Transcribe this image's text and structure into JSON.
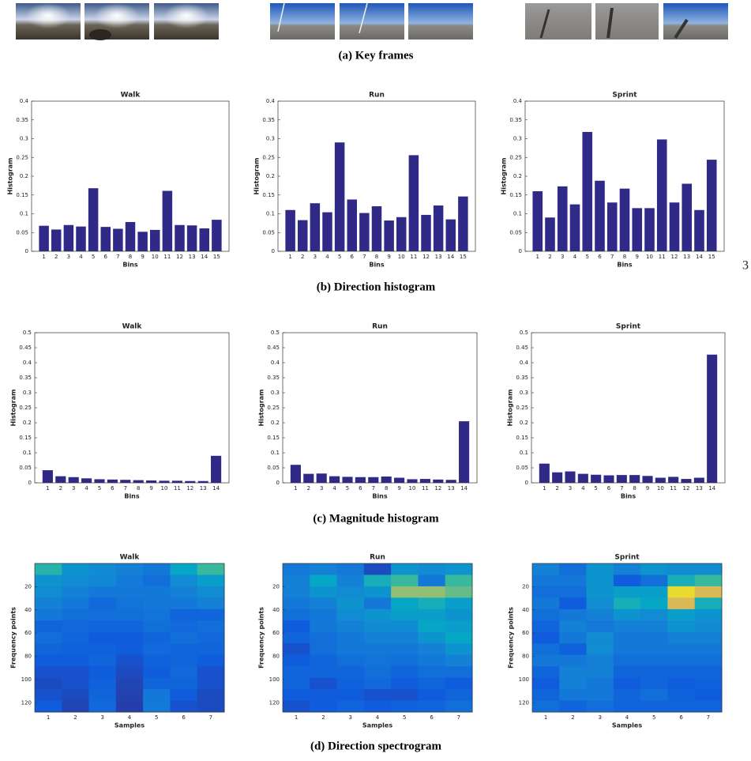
{
  "captions": [
    "(a) Key frames",
    "(b) Direction histogram",
    "(c) Magnitude histogram",
    "(d) Direction spectrogram"
  ],
  "page_number": "3",
  "chart_data": [
    {
      "type": "bar",
      "title": "Walk",
      "x_label": "Bins",
      "y_label": "Histogram",
      "color": "#2f2a87",
      "categories": [
        "1",
        "2",
        "3",
        "4",
        "5",
        "6",
        "7",
        "8",
        "9",
        "10",
        "11",
        "12",
        "13",
        "14",
        "15"
      ],
      "values": [
        0.068,
        0.058,
        0.07,
        0.066,
        0.168,
        0.065,
        0.06,
        0.078,
        0.052,
        0.057,
        0.161,
        0.07,
        0.069,
        0.061,
        0.084
      ],
      "ylim": [
        0,
        0.4
      ],
      "yticks": [
        0,
        0.05,
        0.1,
        0.15,
        0.2,
        0.25,
        0.3,
        0.35,
        0.4
      ]
    },
    {
      "type": "bar",
      "title": "Run",
      "x_label": "Bins",
      "y_label": "Histogram",
      "color": "#2f2a87",
      "categories": [
        "1",
        "2",
        "3",
        "4",
        "5",
        "6",
        "7",
        "8",
        "9",
        "10",
        "11",
        "12",
        "13",
        "14",
        "15"
      ],
      "values": [
        0.11,
        0.083,
        0.128,
        0.104,
        0.29,
        0.138,
        0.102,
        0.12,
        0.082,
        0.091,
        0.256,
        0.097,
        0.122,
        0.085,
        0.146
      ],
      "ylim": [
        0,
        0.4
      ],
      "yticks": [
        0,
        0.05,
        0.1,
        0.15,
        0.2,
        0.25,
        0.3,
        0.35,
        0.4
      ]
    },
    {
      "type": "bar",
      "title": "Sprint",
      "x_label": "Bins",
      "y_label": "Histogram",
      "color": "#2f2a87",
      "categories": [
        "1",
        "2",
        "3",
        "4",
        "5",
        "6",
        "7",
        "8",
        "9",
        "10",
        "11",
        "12",
        "13",
        "14",
        "15"
      ],
      "values": [
        0.16,
        0.09,
        0.173,
        0.125,
        0.318,
        0.188,
        0.13,
        0.167,
        0.115,
        0.115,
        0.298,
        0.13,
        0.18,
        0.11,
        0.244
      ],
      "ylim": [
        0,
        0.4
      ],
      "yticks": [
        0,
        0.05,
        0.1,
        0.15,
        0.2,
        0.25,
        0.3,
        0.35,
        0.4
      ]
    },
    {
      "type": "bar",
      "title": "Walk",
      "x_label": "Bins",
      "y_label": "Histogram",
      "color": "#2f2a87",
      "categories": [
        "1",
        "2",
        "3",
        "4",
        "5",
        "6",
        "7",
        "8",
        "9",
        "10",
        "11",
        "12",
        "13",
        "14"
      ],
      "values": [
        0.042,
        0.022,
        0.019,
        0.015,
        0.012,
        0.011,
        0.01,
        0.009,
        0.008,
        0.007,
        0.007,
        0.006,
        0.006,
        0.09
      ],
      "ylim": [
        0,
        0.5
      ],
      "yticks": [
        0,
        0.05,
        0.1,
        0.15,
        0.2,
        0.25,
        0.3,
        0.35,
        0.4,
        0.45,
        0.5
      ]
    },
    {
      "type": "bar",
      "title": "Run",
      "x_label": "Bins",
      "y_label": "Histogram",
      "color": "#2f2a87",
      "categories": [
        "1",
        "2",
        "3",
        "4",
        "5",
        "6",
        "7",
        "8",
        "9",
        "10",
        "11",
        "12",
        "13",
        "14"
      ],
      "values": [
        0.06,
        0.03,
        0.031,
        0.022,
        0.02,
        0.019,
        0.019,
        0.021,
        0.017,
        0.012,
        0.013,
        0.011,
        0.01,
        0.205
      ],
      "ylim": [
        0,
        0.5
      ],
      "yticks": [
        0,
        0.05,
        0.1,
        0.15,
        0.2,
        0.25,
        0.3,
        0.35,
        0.4,
        0.45,
        0.5
      ]
    },
    {
      "type": "bar",
      "title": "Sprint",
      "x_label": "Bins",
      "y_label": "Histogram",
      "color": "#2f2a87",
      "categories": [
        "1",
        "2",
        "3",
        "4",
        "5",
        "6",
        "7",
        "8",
        "9",
        "10",
        "11",
        "12",
        "13",
        "14"
      ],
      "values": [
        0.064,
        0.035,
        0.038,
        0.03,
        0.027,
        0.025,
        0.026,
        0.026,
        0.023,
        0.017,
        0.02,
        0.013,
        0.017,
        0.427
      ],
      "ylim": [
        0,
        0.5
      ],
      "yticks": [
        0,
        0.05,
        0.1,
        0.15,
        0.2,
        0.25,
        0.3,
        0.35,
        0.4,
        0.45,
        0.5
      ]
    },
    {
      "type": "heatmap",
      "title": "Walk",
      "x_label": "Samples",
      "y_label": "Frequency points",
      "colormap": "parula",
      "categories": [
        "1",
        "2",
        "3",
        "4",
        "5",
        "6",
        "7"
      ],
      "ylim": [
        0,
        128
      ],
      "y_reversed": true,
      "yticks": [
        20,
        40,
        60,
        80,
        100,
        120
      ],
      "values": [
        [
          0.65,
          0.45,
          0.4,
          0.35,
          0.3,
          0.2,
          0.25,
          0.2,
          0.15,
          0.12,
          0.1,
          0.12,
          0.15
        ],
        [
          0.45,
          0.4,
          0.35,
          0.3,
          0.25,
          0.22,
          0.2,
          0.18,
          0.15,
          0.12,
          0.12,
          0.1,
          0.08
        ],
        [
          0.4,
          0.38,
          0.3,
          0.22,
          0.25,
          0.2,
          0.15,
          0.18,
          0.2,
          0.15,
          0.18,
          0.2,
          0.22
        ],
        [
          0.35,
          0.32,
          0.3,
          0.28,
          0.25,
          0.2,
          0.15,
          0.15,
          0.12,
          0.1,
          0.08,
          0.07,
          0.06
        ],
        [
          0.3,
          0.25,
          0.3,
          0.3,
          0.28,
          0.25,
          0.2,
          0.22,
          0.18,
          0.15,
          0.2,
          0.3,
          0.32
        ],
        [
          0.55,
          0.4,
          0.35,
          0.3,
          0.2,
          0.22,
          0.25,
          0.2,
          0.2,
          0.22,
          0.2,
          0.15,
          0.12
        ],
        [
          0.7,
          0.5,
          0.4,
          0.35,
          0.2,
          0.25,
          0.22,
          0.2,
          0.15,
          0.12,
          0.12,
          0.1,
          0.1
        ]
      ]
    },
    {
      "type": "heatmap",
      "title": "Run",
      "x_label": "Samples",
      "y_label": "Frequency points",
      "colormap": "parula",
      "categories": [
        "1",
        "2",
        "3",
        "4",
        "5",
        "6",
        "7"
      ],
      "ylim": [
        0,
        128
      ],
      "y_reversed": true,
      "yticks": [
        20,
        40,
        60,
        80,
        100,
        120
      ],
      "values": [
        [
          0.3,
          0.35,
          0.35,
          0.3,
          0.25,
          0.15,
          0.2,
          0.12,
          0.15,
          0.2,
          0.2,
          0.15,
          0.12
        ],
        [
          0.35,
          0.55,
          0.45,
          0.35,
          0.3,
          0.3,
          0.25,
          0.25,
          0.2,
          0.2,
          0.12,
          0.15,
          0.15
        ],
        [
          0.3,
          0.35,
          0.4,
          0.45,
          0.4,
          0.35,
          0.3,
          0.3,
          0.25,
          0.2,
          0.18,
          0.15,
          0.2
        ],
        [
          0.1,
          0.6,
          0.45,
          0.3,
          0.45,
          0.4,
          0.35,
          0.3,
          0.28,
          0.25,
          0.22,
          0.12,
          0.15
        ],
        [
          0.45,
          0.7,
          0.8,
          0.55,
          0.5,
          0.4,
          0.35,
          0.3,
          0.25,
          0.2,
          0.15,
          0.12,
          0.18
        ],
        [
          0.4,
          0.3,
          0.8,
          0.6,
          0.5,
          0.55,
          0.45,
          0.35,
          0.3,
          0.25,
          0.2,
          0.15,
          0.2
        ],
        [
          0.45,
          0.7,
          0.75,
          0.5,
          0.45,
          0.5,
          0.55,
          0.45,
          0.35,
          0.25,
          0.15,
          0.2,
          0.25
        ]
      ]
    },
    {
      "type": "heatmap",
      "title": "Sprint",
      "x_label": "Samples",
      "y_label": "Frequency points",
      "colormap": "parula",
      "categories": [
        "1",
        "2",
        "3",
        "4",
        "5",
        "6",
        "7"
      ],
      "ylim": [
        0,
        128
      ],
      "y_reversed": true,
      "yticks": [
        20,
        40,
        60,
        80,
        100,
        120
      ],
      "values": [
        [
          0.35,
          0.3,
          0.25,
          0.3,
          0.25,
          0.2,
          0.15,
          0.25,
          0.3,
          0.2,
          0.15,
          0.2,
          0.25
        ],
        [
          0.25,
          0.3,
          0.25,
          0.15,
          0.3,
          0.35,
          0.3,
          0.18,
          0.3,
          0.35,
          0.35,
          0.3,
          0.2
        ],
        [
          0.45,
          0.45,
          0.45,
          0.4,
          0.35,
          0.3,
          0.4,
          0.4,
          0.35,
          0.35,
          0.3,
          0.3,
          0.25
        ],
        [
          0.35,
          0.15,
          0.5,
          0.6,
          0.45,
          0.35,
          0.3,
          0.3,
          0.25,
          0.2,
          0.15,
          0.2,
          0.2
        ],
        [
          0.45,
          0.25,
          0.5,
          0.55,
          0.4,
          0.35,
          0.3,
          0.3,
          0.25,
          0.2,
          0.2,
          0.25,
          0.2
        ],
        [
          0.4,
          0.6,
          0.95,
          0.9,
          0.5,
          0.45,
          0.35,
          0.3,
          0.25,
          0.2,
          0.15,
          0.18,
          0.2
        ],
        [
          0.4,
          0.7,
          0.9,
          0.6,
          0.45,
          0.4,
          0.35,
          0.3,
          0.25,
          0.2,
          0.18,
          0.15,
          0.2
        ]
      ]
    }
  ]
}
